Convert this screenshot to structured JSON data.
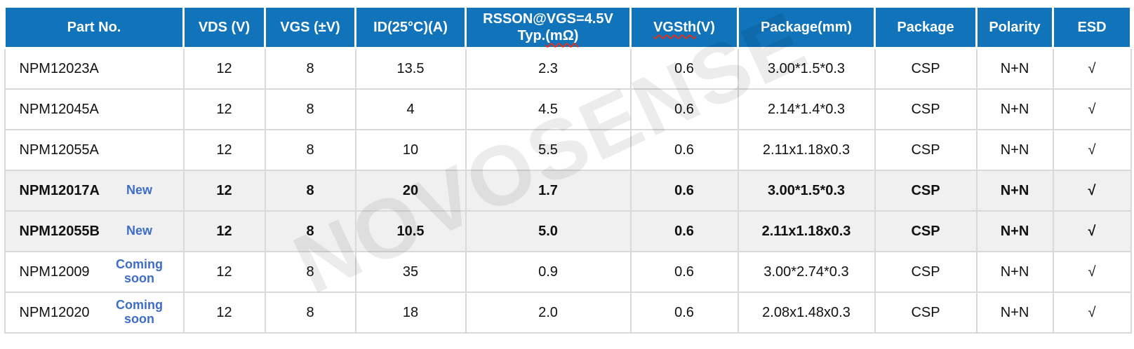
{
  "watermark": {
    "text": "NOVOSENSE"
  },
  "colors": {
    "header_bg": "#1173B9",
    "header_text": "#ffffff",
    "tag_blue": "#3E6DC8",
    "highlight_row_bg": "#f0f0f0",
    "grid_line": "#d9d9d9",
    "spellcheck_red": "#e0301e",
    "body_text": "#111111"
  },
  "table": {
    "headers": {
      "part": "Part No.",
      "vds": "VDS (V)",
      "vgs": "VGS (±V)",
      "id": "ID(25°C)(A)",
      "rsson_line1": "RSSON@VGS=4.5V",
      "rsson_line2_prefix": "Typ.",
      "rsson_line2_misspelled": "(mΩ)",
      "vgsth_misspelled": "VGSth",
      "vgsth_suffix": "(V)",
      "package_mm": "Package(mm)",
      "package": "Package",
      "polarity": "Polarity",
      "esd": "ESD"
    },
    "rows": [
      {
        "part": "NPM12023A",
        "tag": "",
        "vds": "12",
        "vgs": "8",
        "id": "13.5",
        "rsson": "2.3",
        "vgsth": "0.6",
        "package_mm": "3.00*1.5*0.3",
        "package": "CSP",
        "polarity": "N+N",
        "esd": "√",
        "highlight": false
      },
      {
        "part": "NPM12045A",
        "tag": "",
        "vds": "12",
        "vgs": "8",
        "id": "4",
        "rsson": "4.5",
        "vgsth": "0.6",
        "package_mm": "2.14*1.4*0.3",
        "package": "CSP",
        "polarity": "N+N",
        "esd": "√",
        "highlight": false
      },
      {
        "part": "NPM12055A",
        "tag": "",
        "vds": "12",
        "vgs": "8",
        "id": "10",
        "rsson": "5.5",
        "vgsth": "0.6",
        "package_mm": "2.11x1.18x0.3",
        "package": "CSP",
        "polarity": "N+N",
        "esd": "√",
        "highlight": false
      },
      {
        "part": "NPM12017A",
        "tag": "New",
        "vds": "12",
        "vgs": "8",
        "id": "20",
        "rsson": "1.7",
        "vgsth": "0.6",
        "package_mm": "3.00*1.5*0.3",
        "package": "CSP",
        "polarity": "N+N",
        "esd": "√",
        "highlight": true
      },
      {
        "part": "NPM12055B",
        "tag": "New",
        "vds": "12",
        "vgs": "8",
        "id": "10.5",
        "rsson": "5.0",
        "vgsth": "0.6",
        "package_mm": "2.11x1.18x0.3",
        "package": "CSP",
        "polarity": "N+N",
        "esd": "√",
        "highlight": true
      },
      {
        "part": "NPM12009",
        "tag": "Coming soon",
        "vds": "12",
        "vgs": "8",
        "id": "35",
        "rsson": "0.9",
        "vgsth": "0.6",
        "package_mm": "3.00*2.74*0.3",
        "package": "CSP",
        "polarity": "N+N",
        "esd": "√",
        "highlight": false
      },
      {
        "part": "NPM12020",
        "tag": "Coming soon",
        "vds": "12",
        "vgs": "8",
        "id": "18",
        "rsson": "2.0",
        "vgsth": "0.6",
        "package_mm": "2.08x1.48x0.3",
        "package": "CSP",
        "polarity": "N+N",
        "esd": "√",
        "highlight": false
      }
    ]
  }
}
